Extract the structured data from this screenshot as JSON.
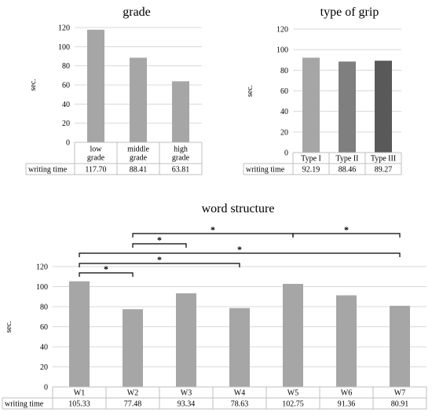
{
  "chart_data": [
    {
      "type": "bar",
      "title": "grade",
      "ylabel": "sec.",
      "ylim": [
        0,
        120
      ],
      "yticks": [
        "0",
        "20",
        "40",
        "60",
        "80",
        "100",
        "120"
      ],
      "categories": [
        [
          "low",
          "grade"
        ],
        [
          "middle",
          "grade"
        ],
        [
          "high",
          "grade"
        ]
      ],
      "series": [
        {
          "name": "writing time",
          "values": [
            117.7,
            88.41,
            63.81
          ],
          "labels": [
            "117.70",
            "88.41",
            "63.81"
          ]
        }
      ],
      "colors": [
        "#a6a6a6",
        "#a6a6a6",
        "#a6a6a6"
      ],
      "grid": true
    },
    {
      "type": "bar",
      "title": "type of grip",
      "ylabel": "sec.",
      "ylim": [
        0,
        120
      ],
      "yticks": [
        "0",
        "20",
        "40",
        "60",
        "80",
        "100",
        "120"
      ],
      "categories": [
        [
          "Type I"
        ],
        [
          "Type II"
        ],
        [
          "Type III"
        ]
      ],
      "series": [
        {
          "name": "writing time",
          "values": [
            92.19,
            88.46,
            89.27
          ],
          "labels": [
            "92.19",
            "88.46",
            "89.27"
          ]
        }
      ],
      "colors": [
        "#a6a6a6",
        "#7f7f7f",
        "#595959"
      ],
      "grid": true
    },
    {
      "type": "bar",
      "title": "word structure",
      "ylabel": "sec.",
      "ylim": [
        0,
        120
      ],
      "yticks": [
        "0",
        "20",
        "40",
        "60",
        "80",
        "100",
        "120"
      ],
      "categories": [
        [
          "W1"
        ],
        [
          "W2"
        ],
        [
          "W3"
        ],
        [
          "W4"
        ],
        [
          "W5"
        ],
        [
          "W6"
        ],
        [
          "W7"
        ]
      ],
      "series": [
        {
          "name": "writing time",
          "values": [
            105.33,
            77.48,
            93.34,
            78.63,
            102.75,
            91.36,
            80.91
          ],
          "labels": [
            "105.33",
            "77.48",
            "93.34",
            "78.63",
            "102.75",
            "91.36",
            "80.91"
          ]
        }
      ],
      "colors": [
        "#a6a6a6",
        "#a6a6a6",
        "#a6a6a6",
        "#a6a6a6",
        "#a6a6a6",
        "#a6a6a6",
        "#a6a6a6"
      ],
      "grid": true,
      "significance": [
        {
          "from": 2,
          "to": 5,
          "label": "*"
        },
        {
          "from": 5,
          "to": 7,
          "label": "*"
        },
        {
          "from": 2,
          "to": 3,
          "label": "*"
        },
        {
          "from": 1,
          "to": 7,
          "label": "*"
        },
        {
          "from": 1,
          "to": 4,
          "label": "*"
        },
        {
          "from": 1,
          "to": 2,
          "label": "*"
        }
      ]
    }
  ]
}
